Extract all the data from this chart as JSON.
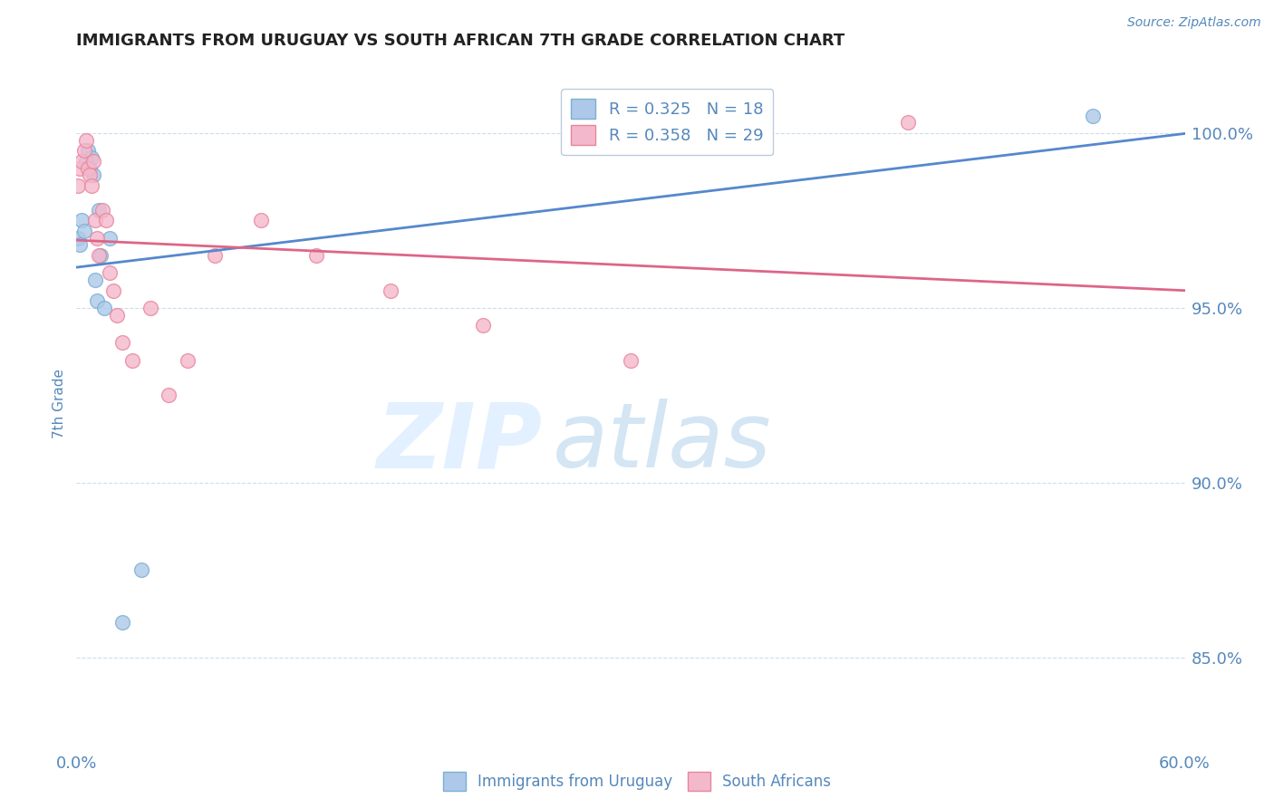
{
  "title": "IMMIGRANTS FROM URUGUAY VS SOUTH AFRICAN 7TH GRADE CORRELATION CHART",
  "source": "Source: ZipAtlas.com",
  "ylabel": "7th Grade",
  "yticks": [
    85.0,
    90.0,
    95.0,
    100.0
  ],
  "ytick_labels": [
    "85.0%",
    "90.0%",
    "95.0%",
    "100.0%"
  ],
  "xlim": [
    0.0,
    60.0
  ],
  "ylim": [
    83.0,
    101.5
  ],
  "uruguay_x": [
    0.1,
    0.2,
    0.3,
    0.4,
    0.5,
    0.6,
    0.7,
    0.8,
    0.9,
    1.0,
    1.1,
    1.2,
    1.3,
    1.5,
    1.8,
    2.5,
    3.5,
    55.0
  ],
  "uruguay_y": [
    97.0,
    96.8,
    97.5,
    97.2,
    99.2,
    99.5,
    99.0,
    99.3,
    98.8,
    95.8,
    95.2,
    97.8,
    96.5,
    95.0,
    97.0,
    86.0,
    87.5,
    100.5
  ],
  "sa_x": [
    0.1,
    0.2,
    0.3,
    0.4,
    0.5,
    0.6,
    0.7,
    0.8,
    0.9,
    1.0,
    1.1,
    1.2,
    1.4,
    1.6,
    1.8,
    2.0,
    2.2,
    2.5,
    3.0,
    4.0,
    5.0,
    6.0,
    7.5,
    10.0,
    13.0,
    17.0,
    22.0,
    30.0,
    45.0
  ],
  "sa_y": [
    98.5,
    99.0,
    99.2,
    99.5,
    99.8,
    99.0,
    98.8,
    98.5,
    99.2,
    97.5,
    97.0,
    96.5,
    97.8,
    97.5,
    96.0,
    95.5,
    94.8,
    94.0,
    93.5,
    95.0,
    92.5,
    93.5,
    96.5,
    97.5,
    96.5,
    95.5,
    94.5,
    93.5,
    100.3
  ],
  "uruguay_color": "#adc8e8",
  "sa_color": "#f4b8cc",
  "uruguay_edge_color": "#7aafd4",
  "sa_edge_color": "#e8859a",
  "line_color_uruguay": "#5588cc",
  "line_color_sa": "#dd6688",
  "R_uruguay": 0.325,
  "N_uruguay": 18,
  "R_sa": 0.358,
  "N_sa": 29,
  "marker_size": 130,
  "legend_entries": [
    "Immigrants from Uruguay",
    "South Africans"
  ],
  "title_color": "#222222",
  "axis_color": "#5588bb",
  "grid_color": "#ccddee",
  "background_color": "#ffffff"
}
